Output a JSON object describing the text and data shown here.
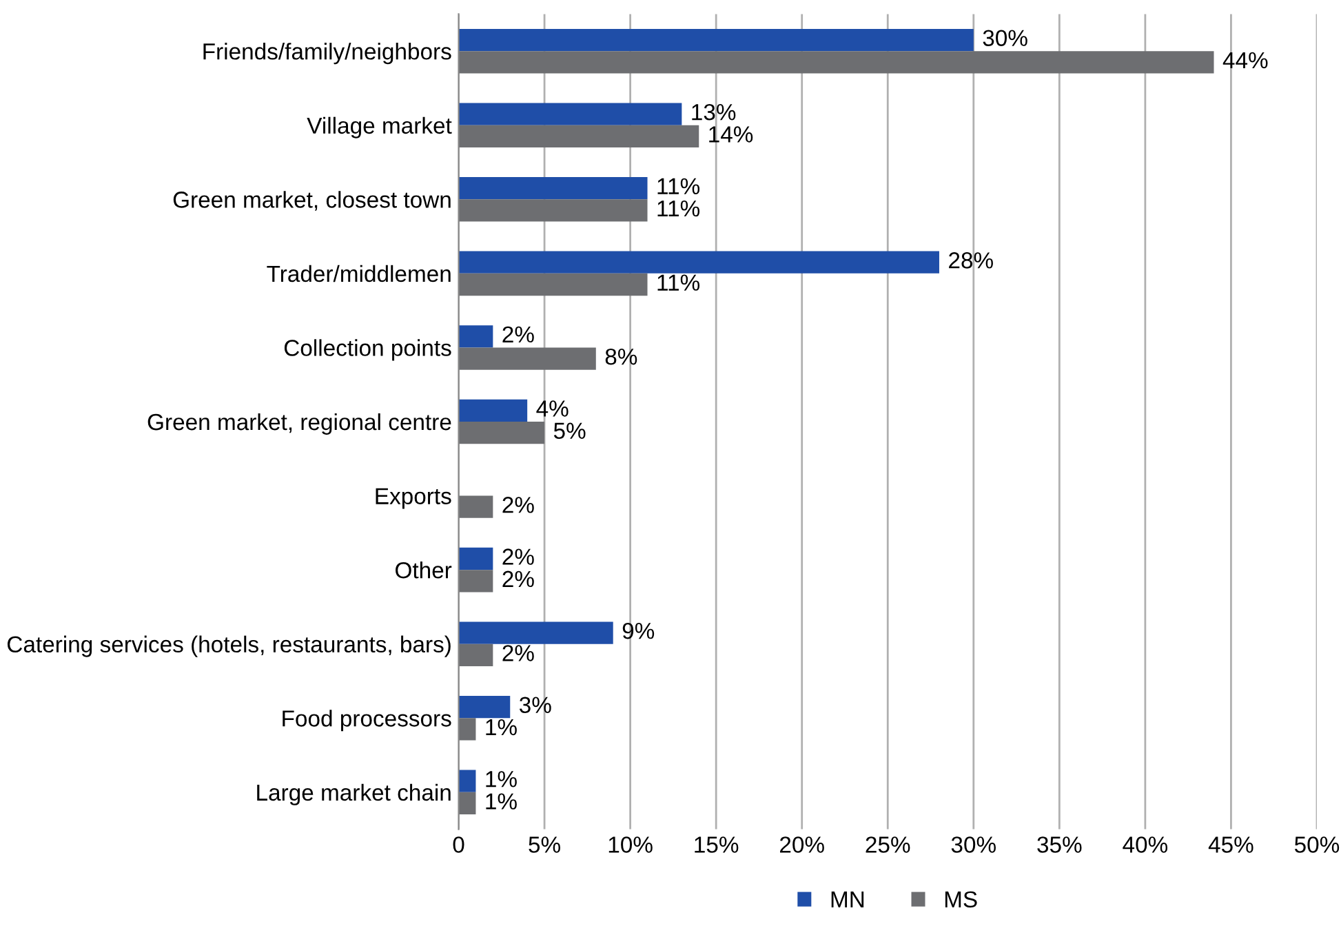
{
  "chart_data": {
    "type": "bar",
    "orientation": "horizontal",
    "categories": [
      "Friends/family/neighbors",
      "Village market",
      "Green market, closest town",
      "Trader/middlemen",
      "Collection points",
      "Green market, regional centre",
      "Exports",
      "Other",
      "Catering services (hotels, restaurants, bars)",
      "Food processors",
      "Large market chain"
    ],
    "series": [
      {
        "name": "MN",
        "color": "#1f4ea8",
        "values": [
          30,
          13,
          11,
          28,
          2,
          4,
          null,
          2,
          9,
          3,
          1
        ],
        "value_labels": [
          "30%",
          "13%",
          "11%",
          "28%",
          "2%",
          "4%",
          null,
          "2%",
          "9%",
          "3%",
          "1%"
        ]
      },
      {
        "name": "MS",
        "color": "#6d6e71",
        "values": [
          44,
          14,
          11,
          11,
          8,
          5,
          2,
          2,
          2,
          1,
          1
        ],
        "value_labels": [
          "44%",
          "14%",
          "11%",
          "11%",
          "8%",
          "5%",
          "2%",
          "2%",
          "2%",
          "1%",
          "1%"
        ]
      }
    ],
    "xlim": [
      0,
      50
    ],
    "xticks": [
      0,
      {
        "value": 5,
        "label": "5%"
      },
      {
        "value": 10,
        "label": "10%"
      },
      {
        "value": 15,
        "label": "15%"
      },
      {
        "value": 20,
        "label": "20%"
      },
      {
        "value": 25,
        "label": "25%"
      },
      {
        "value": 30,
        "label": "30%"
      },
      {
        "value": 35,
        "label": "35%"
      },
      {
        "value": 40,
        "label": "40%"
      },
      {
        "value": 45,
        "label": "45%"
      },
      {
        "value": 50,
        "label": "50%"
      }
    ],
    "grid": "x",
    "legend": "bottom"
  }
}
